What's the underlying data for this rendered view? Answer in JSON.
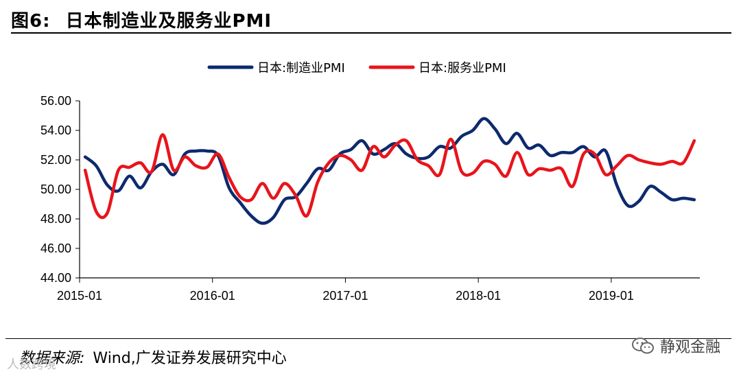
{
  "header": {
    "figure_label": "图6:",
    "figure_title": "日本制造业及服务业PMI"
  },
  "footer": {
    "source_label": "数据来源:",
    "source_text": "Wind,广发证券发展研究中心"
  },
  "watermark": {
    "brand": "静观金融",
    "brand_icon": "wechat-icon",
    "left_text": "人数跨境"
  },
  "chart_data": {
    "type": "line",
    "title": "",
    "xlabel": "",
    "ylabel": "",
    "ylim": [
      44,
      56
    ],
    "yticks": [
      "44.00",
      "46.00",
      "48.00",
      "50.00",
      "52.00",
      "54.00",
      "56.00"
    ],
    "xticks": [
      "2015-01",
      "2016-01",
      "2017-01",
      "2018-01",
      "2019-01"
    ],
    "x": [
      "2015-01",
      "2015-02",
      "2015-03",
      "2015-04",
      "2015-05",
      "2015-06",
      "2015-07",
      "2015-08",
      "2015-09",
      "2015-10",
      "2015-11",
      "2015-12",
      "2016-01",
      "2016-02",
      "2016-03",
      "2016-04",
      "2016-05",
      "2016-06",
      "2016-07",
      "2016-08",
      "2016-09",
      "2016-10",
      "2016-11",
      "2016-12",
      "2017-01",
      "2017-02",
      "2017-03",
      "2017-04",
      "2017-05",
      "2017-06",
      "2017-07",
      "2017-08",
      "2017-09",
      "2017-10",
      "2017-11",
      "2017-12",
      "2018-01",
      "2018-02",
      "2018-03",
      "2018-04",
      "2018-05",
      "2018-06",
      "2018-07",
      "2018-08",
      "2018-09",
      "2018-10",
      "2018-11",
      "2018-12",
      "2019-01",
      "2019-02",
      "2019-03",
      "2019-04",
      "2019-05",
      "2019-06",
      "2019-07",
      "2019-08"
    ],
    "grid": false,
    "legend_position": "top",
    "series": [
      {
        "name": "日本:制造业PMI",
        "color": "#0d2a6e",
        "values": [
          52.2,
          51.6,
          50.3,
          49.9,
          50.9,
          50.1,
          51.2,
          51.7,
          51.0,
          52.4,
          52.6,
          52.6,
          52.3,
          50.1,
          49.1,
          48.2,
          47.7,
          48.1,
          49.3,
          49.5,
          50.4,
          51.4,
          51.3,
          52.4,
          52.7,
          53.3,
          52.4,
          52.7,
          53.1,
          52.4,
          52.1,
          52.2,
          52.9,
          52.8,
          53.6,
          54.0,
          54.8,
          54.1,
          53.1,
          53.8,
          52.8,
          53.0,
          52.3,
          52.5,
          52.5,
          52.9,
          52.2,
          52.6,
          50.3,
          48.9,
          49.2,
          50.2,
          49.8,
          49.3,
          49.4,
          49.3
        ]
      },
      {
        "name": "日本:服务业PMI",
        "color": "#e8141b",
        "values": [
          51.3,
          48.5,
          48.4,
          51.3,
          51.5,
          51.8,
          51.2,
          53.7,
          51.3,
          52.2,
          51.6,
          51.5,
          52.4,
          50.8,
          49.5,
          49.3,
          50.4,
          49.4,
          50.4,
          49.6,
          48.2,
          50.5,
          51.8,
          52.3,
          52.0,
          51.3,
          52.9,
          52.2,
          53.0,
          53.3,
          52.0,
          51.6,
          51.0,
          53.4,
          51.2,
          51.1,
          51.9,
          51.7,
          50.9,
          52.5,
          51.0,
          51.4,
          51.3,
          51.4,
          50.2,
          52.4,
          52.4,
          51.0,
          51.6,
          52.3,
          52.0,
          51.8,
          51.7,
          51.9,
          51.8,
          53.3
        ]
      }
    ]
  }
}
